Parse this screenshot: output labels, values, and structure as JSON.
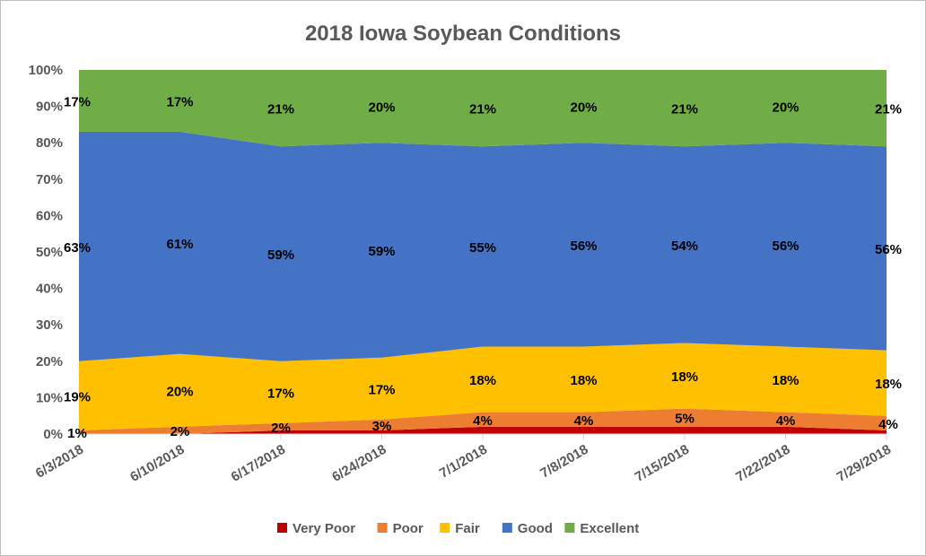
{
  "chart_data": {
    "type": "area",
    "stacked": true,
    "percent": true,
    "title": "2018 Iowa Soybean Conditions",
    "categories": [
      "6/3/2018",
      "6/10/2018",
      "6/17/2018",
      "6/24/2018",
      "7/1/2018",
      "7/8/2018",
      "7/15/2018",
      "7/22/2018",
      "7/29/2018"
    ],
    "y_ticks": [
      "0%",
      "10%",
      "20%",
      "30%",
      "40%",
      "50%",
      "60%",
      "70%",
      "80%",
      "90%",
      "100%"
    ],
    "ylim": [
      0,
      100
    ],
    "grid": false,
    "legend_position": "bottom",
    "series": [
      {
        "name": "Very Poor",
        "color": "#c00000",
        "values": [
          0,
          0,
          1,
          1,
          2,
          2,
          2,
          2,
          1
        ],
        "labels": [
          "",
          "",
          "",
          "",
          "",
          "",
          "",
          "",
          ""
        ]
      },
      {
        "name": "Poor",
        "color": "#ed7d31",
        "values": [
          1,
          2,
          2,
          3,
          4,
          4,
          5,
          4,
          4
        ],
        "labels": [
          "1%",
          "2%",
          "2%",
          "3%",
          "4%",
          "4%",
          "5%",
          "4%",
          "4%"
        ]
      },
      {
        "name": "Fair",
        "color": "#ffc000",
        "values": [
          19,
          20,
          17,
          17,
          18,
          18,
          18,
          18,
          18
        ],
        "labels": [
          "19%",
          "20%",
          "17%",
          "17%",
          "18%",
          "18%",
          "18%",
          "18%",
          "18%"
        ]
      },
      {
        "name": "Good",
        "color": "#4472c4",
        "values": [
          63,
          61,
          59,
          59,
          55,
          56,
          54,
          56,
          56
        ],
        "labels": [
          "63%",
          "61%",
          "59%",
          "59%",
          "55%",
          "56%",
          "54%",
          "56%",
          "56%"
        ]
      },
      {
        "name": "Excellent",
        "color": "#70ad47",
        "values": [
          17,
          17,
          21,
          20,
          21,
          20,
          21,
          20,
          21
        ],
        "labels": [
          "17%",
          "17%",
          "21%",
          "20%",
          "21%",
          "20%",
          "21%",
          "20%",
          "21%"
        ]
      }
    ]
  }
}
